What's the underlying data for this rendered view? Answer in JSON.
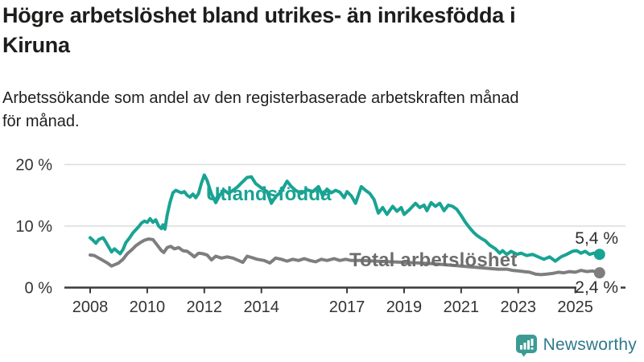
{
  "header": {
    "title_lines": [
      "Högre arbetslöshet bland utrikes- än inrikesfödda i",
      "Kiruna"
    ],
    "subtitle_lines": [
      "Arbetssökande som andel av den registerbaserade arbetskraften månad",
      "för månad."
    ]
  },
  "footer": {
    "brand": "Newsworthy"
  },
  "colors": {
    "accent_teal": "#19a393",
    "series_total_gray": "#7e7e7e",
    "series_label_gray": "#6d6d6d",
    "grid": "#dcdcdc",
    "axis": "#3a3a3a",
    "tick_text": "#333333",
    "value_text": "#2f2f2f",
    "logo_teal": "#3b9b94",
    "brand_text": "#2f7a8c"
  },
  "chart_data": {
    "type": "line",
    "title": "Högre arbetslöshet bland utrikes- än inrikesfödda i Kiruna",
    "subtitle": "Arbetssökande som andel av den registerbaserade arbetskraften månad för månad.",
    "xlabel": "",
    "ylabel": "",
    "x_range": [
      2007.8,
      2026.2
    ],
    "ylim": [
      0,
      20
    ],
    "grid": "horizontal",
    "legend_position": "inline-labels",
    "x_axis": {
      "tick_years": [
        2008,
        2010,
        2012,
        2014,
        2017,
        2019,
        2021,
        2023,
        2025
      ],
      "tick_labels": [
        "2008",
        "2010",
        "2012",
        "2014",
        "2017",
        "2019",
        "2021",
        "2023",
        "2025"
      ]
    },
    "y_axis": {
      "tick_values": [
        0,
        10,
        20
      ],
      "tick_labels": [
        "0 %",
        "10 %",
        "20 %"
      ],
      "unit": "%"
    },
    "series": [
      {
        "name": "Total arbetslöshet",
        "color": "#7e7e7e",
        "label_color": "#6d6d6d",
        "end_value": 2.4,
        "end_label": "2,4 %",
        "points": [
          [
            2008.0,
            5.3
          ],
          [
            2008.15,
            5.2
          ],
          [
            2008.3,
            4.8
          ],
          [
            2008.45,
            4.4
          ],
          [
            2008.6,
            4.0
          ],
          [
            2008.75,
            3.5
          ],
          [
            2008.9,
            3.8
          ],
          [
            2009.0,
            4.0
          ],
          [
            2009.15,
            4.6
          ],
          [
            2009.3,
            5.5
          ],
          [
            2009.45,
            6.1
          ],
          [
            2009.6,
            6.8
          ],
          [
            2009.75,
            7.3
          ],
          [
            2009.9,
            7.7
          ],
          [
            2010.05,
            7.9
          ],
          [
            2010.2,
            7.8
          ],
          [
            2010.35,
            6.9
          ],
          [
            2010.5,
            6.0
          ],
          [
            2010.58,
            5.7
          ],
          [
            2010.7,
            6.5
          ],
          [
            2010.82,
            6.7
          ],
          [
            2010.95,
            6.3
          ],
          [
            2011.1,
            6.5
          ],
          [
            2011.25,
            6.0
          ],
          [
            2011.4,
            5.9
          ],
          [
            2011.55,
            5.4
          ],
          [
            2011.65,
            5.0
          ],
          [
            2011.8,
            5.6
          ],
          [
            2011.95,
            5.5
          ],
          [
            2012.1,
            5.3
          ],
          [
            2012.25,
            4.5
          ],
          [
            2012.4,
            5.1
          ],
          [
            2012.6,
            4.8
          ],
          [
            2012.8,
            5.0
          ],
          [
            2013.0,
            4.8
          ],
          [
            2013.2,
            4.4
          ],
          [
            2013.35,
            4.1
          ],
          [
            2013.5,
            5.1
          ],
          [
            2013.65,
            4.9
          ],
          [
            2013.85,
            4.6
          ],
          [
            2014.1,
            4.4
          ],
          [
            2014.3,
            4.0
          ],
          [
            2014.5,
            4.8
          ],
          [
            2014.7,
            4.6
          ],
          [
            2014.9,
            4.3
          ],
          [
            2015.1,
            4.6
          ],
          [
            2015.3,
            4.4
          ],
          [
            2015.5,
            4.7
          ],
          [
            2015.7,
            4.4
          ],
          [
            2015.9,
            4.2
          ],
          [
            2016.1,
            4.6
          ],
          [
            2016.3,
            4.4
          ],
          [
            2016.55,
            4.7
          ],
          [
            2016.75,
            4.4
          ],
          [
            2016.95,
            4.6
          ],
          [
            2017.15,
            4.4
          ],
          [
            2017.5,
            4.4
          ],
          [
            2018.0,
            4.3
          ],
          [
            2018.5,
            4.2
          ],
          [
            2019.0,
            4.1
          ],
          [
            2019.5,
            4.0
          ],
          [
            2020.0,
            3.9
          ],
          [
            2020.5,
            3.7
          ],
          [
            2021.0,
            3.5
          ],
          [
            2021.5,
            3.3
          ],
          [
            2022.0,
            3.1
          ],
          [
            2022.3,
            3.0
          ],
          [
            2022.6,
            3.0
          ],
          [
            2022.8,
            2.8
          ],
          [
            2023.0,
            2.7
          ],
          [
            2023.2,
            2.6
          ],
          [
            2023.4,
            2.5
          ],
          [
            2023.6,
            2.2
          ],
          [
            2023.8,
            2.1
          ],
          [
            2024.0,
            2.2
          ],
          [
            2024.2,
            2.3
          ],
          [
            2024.4,
            2.5
          ],
          [
            2024.6,
            2.4
          ],
          [
            2024.8,
            2.6
          ],
          [
            2025.0,
            2.5
          ],
          [
            2025.2,
            2.8
          ],
          [
            2025.4,
            2.6
          ],
          [
            2025.6,
            2.7
          ],
          [
            2025.85,
            2.4
          ]
        ]
      },
      {
        "name": "Utlandsfödda",
        "color": "#19a393",
        "label_color": "#19a393",
        "end_value": 5.4,
        "end_label": "5,4 %",
        "points": [
          [
            2008.0,
            8.1
          ],
          [
            2008.1,
            7.7
          ],
          [
            2008.2,
            7.2
          ],
          [
            2008.3,
            7.8
          ],
          [
            2008.45,
            8.1
          ],
          [
            2008.55,
            7.4
          ],
          [
            2008.65,
            6.6
          ],
          [
            2008.75,
            5.8
          ],
          [
            2008.85,
            6.3
          ],
          [
            2008.95,
            5.9
          ],
          [
            2009.05,
            5.5
          ],
          [
            2009.15,
            6.2
          ],
          [
            2009.25,
            7.3
          ],
          [
            2009.4,
            8.2
          ],
          [
            2009.5,
            8.9
          ],
          [
            2009.6,
            9.4
          ],
          [
            2009.7,
            9.9
          ],
          [
            2009.8,
            10.5
          ],
          [
            2009.9,
            10.8
          ],
          [
            2010.0,
            10.6
          ],
          [
            2010.1,
            11.2
          ],
          [
            2010.2,
            10.6
          ],
          [
            2010.3,
            11.0
          ],
          [
            2010.4,
            10.0
          ],
          [
            2010.5,
            9.6
          ],
          [
            2010.55,
            10.2
          ],
          [
            2010.62,
            9.5
          ],
          [
            2010.7,
            11.8
          ],
          [
            2010.8,
            13.9
          ],
          [
            2010.9,
            15.4
          ],
          [
            2011.0,
            15.8
          ],
          [
            2011.1,
            15.6
          ],
          [
            2011.2,
            15.4
          ],
          [
            2011.3,
            15.6
          ],
          [
            2011.4,
            15.0
          ],
          [
            2011.5,
            14.7
          ],
          [
            2011.6,
            15.2
          ],
          [
            2011.7,
            14.6
          ],
          [
            2011.8,
            15.3
          ],
          [
            2011.9,
            17.0
          ],
          [
            2012.0,
            18.3
          ],
          [
            2012.1,
            17.4
          ],
          [
            2012.25,
            15.2
          ],
          [
            2012.4,
            13.8
          ],
          [
            2012.55,
            15.1
          ],
          [
            2012.7,
            15.8
          ],
          [
            2012.85,
            15.3
          ],
          [
            2013.0,
            15.8
          ],
          [
            2013.15,
            16.3
          ],
          [
            2013.3,
            17.0
          ],
          [
            2013.5,
            17.9
          ],
          [
            2013.65,
            18.0
          ],
          [
            2013.8,
            16.9
          ],
          [
            2014.0,
            16.2
          ],
          [
            2014.2,
            15.6
          ],
          [
            2014.35,
            13.7
          ],
          [
            2014.5,
            14.8
          ],
          [
            2014.7,
            15.6
          ],
          [
            2014.9,
            17.3
          ],
          [
            2015.05,
            16.4
          ],
          [
            2015.2,
            15.8
          ],
          [
            2015.4,
            15.3
          ],
          [
            2015.6,
            15.9
          ],
          [
            2015.8,
            15.6
          ],
          [
            2016.0,
            16.4
          ],
          [
            2016.15,
            14.9
          ],
          [
            2016.3,
            16.0
          ],
          [
            2016.45,
            15.4
          ],
          [
            2016.6,
            15.8
          ],
          [
            2016.75,
            15.5
          ],
          [
            2016.9,
            14.6
          ],
          [
            2017.0,
            15.6
          ],
          [
            2017.15,
            14.9
          ],
          [
            2017.3,
            13.7
          ],
          [
            2017.5,
            16.4
          ],
          [
            2017.65,
            15.8
          ],
          [
            2017.8,
            15.3
          ],
          [
            2017.95,
            14.3
          ],
          [
            2018.1,
            12.1
          ],
          [
            2018.25,
            13.0
          ],
          [
            2018.4,
            11.9
          ],
          [
            2018.6,
            13.2
          ],
          [
            2018.75,
            12.4
          ],
          [
            2018.9,
            13.0
          ],
          [
            2019.0,
            11.9
          ],
          [
            2019.2,
            12.7
          ],
          [
            2019.4,
            13.7
          ],
          [
            2019.55,
            13.0
          ],
          [
            2019.7,
            13.4
          ],
          [
            2019.8,
            12.5
          ],
          [
            2019.95,
            13.8
          ],
          [
            2020.1,
            13.2
          ],
          [
            2020.25,
            13.7
          ],
          [
            2020.4,
            12.5
          ],
          [
            2020.55,
            13.4
          ],
          [
            2020.7,
            13.2
          ],
          [
            2020.85,
            12.7
          ],
          [
            2021.0,
            11.7
          ],
          [
            2021.15,
            10.6
          ],
          [
            2021.3,
            9.7
          ],
          [
            2021.45,
            8.9
          ],
          [
            2021.55,
            8.5
          ],
          [
            2021.7,
            8.0
          ],
          [
            2021.85,
            7.6
          ],
          [
            2022.0,
            6.9
          ],
          [
            2022.2,
            6.3
          ],
          [
            2022.35,
            5.6
          ],
          [
            2022.45,
            6.0
          ],
          [
            2022.6,
            5.4
          ],
          [
            2022.75,
            5.9
          ],
          [
            2022.95,
            5.4
          ],
          [
            2023.1,
            5.6
          ],
          [
            2023.3,
            5.2
          ],
          [
            2023.5,
            5.4
          ],
          [
            2023.7,
            5.0
          ],
          [
            2023.9,
            4.6
          ],
          [
            2024.1,
            5.0
          ],
          [
            2024.3,
            4.3
          ],
          [
            2024.5,
            5.0
          ],
          [
            2024.7,
            5.4
          ],
          [
            2024.9,
            5.9
          ],
          [
            2025.05,
            6.0
          ],
          [
            2025.2,
            5.6
          ],
          [
            2025.35,
            5.9
          ],
          [
            2025.5,
            5.4
          ],
          [
            2025.65,
            5.6
          ],
          [
            2025.85,
            5.4
          ]
        ]
      }
    ]
  }
}
